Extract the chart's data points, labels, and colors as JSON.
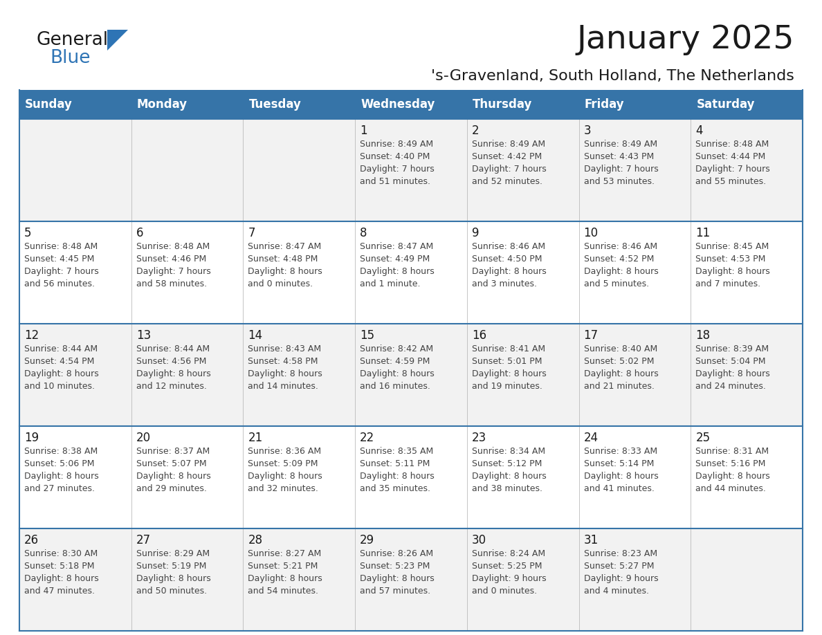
{
  "title": "January 2025",
  "subtitle": "'s-Gravenland, South Holland, The Netherlands",
  "days_of_week": [
    "Sunday",
    "Monday",
    "Tuesday",
    "Wednesday",
    "Thursday",
    "Friday",
    "Saturday"
  ],
  "header_bg": "#3674A8",
  "header_text": "#FFFFFF",
  "row_bg_odd": "#F2F2F2",
  "row_bg_even": "#FFFFFF",
  "cell_border_color": "#AAAAAA",
  "row_border_color": "#3674A8",
  "title_color": "#1A1A1A",
  "subtitle_color": "#1A1A1A",
  "text_color": "#444444",
  "day_num_color": "#1A1A1A",
  "logo_text_color": "#1A1A1A",
  "logo_blue_color": "#2E74B5",
  "triangle_color": "#2E74B5",
  "calendar_data": [
    [
      null,
      null,
      null,
      {
        "day": 1,
        "sunrise": "8:49 AM",
        "sunset": "4:40 PM",
        "daylight": "7 hours\nand 51 minutes."
      },
      {
        "day": 2,
        "sunrise": "8:49 AM",
        "sunset": "4:42 PM",
        "daylight": "7 hours\nand 52 minutes."
      },
      {
        "day": 3,
        "sunrise": "8:49 AM",
        "sunset": "4:43 PM",
        "daylight": "7 hours\nand 53 minutes."
      },
      {
        "day": 4,
        "sunrise": "8:48 AM",
        "sunset": "4:44 PM",
        "daylight": "7 hours\nand 55 minutes."
      }
    ],
    [
      {
        "day": 5,
        "sunrise": "8:48 AM",
        "sunset": "4:45 PM",
        "daylight": "7 hours\nand 56 minutes."
      },
      {
        "day": 6,
        "sunrise": "8:48 AM",
        "sunset": "4:46 PM",
        "daylight": "7 hours\nand 58 minutes."
      },
      {
        "day": 7,
        "sunrise": "8:47 AM",
        "sunset": "4:48 PM",
        "daylight": "8 hours\nand 0 minutes."
      },
      {
        "day": 8,
        "sunrise": "8:47 AM",
        "sunset": "4:49 PM",
        "daylight": "8 hours\nand 1 minute."
      },
      {
        "day": 9,
        "sunrise": "8:46 AM",
        "sunset": "4:50 PM",
        "daylight": "8 hours\nand 3 minutes."
      },
      {
        "day": 10,
        "sunrise": "8:46 AM",
        "sunset": "4:52 PM",
        "daylight": "8 hours\nand 5 minutes."
      },
      {
        "day": 11,
        "sunrise": "8:45 AM",
        "sunset": "4:53 PM",
        "daylight": "8 hours\nand 7 minutes."
      }
    ],
    [
      {
        "day": 12,
        "sunrise": "8:44 AM",
        "sunset": "4:54 PM",
        "daylight": "8 hours\nand 10 minutes."
      },
      {
        "day": 13,
        "sunrise": "8:44 AM",
        "sunset": "4:56 PM",
        "daylight": "8 hours\nand 12 minutes."
      },
      {
        "day": 14,
        "sunrise": "8:43 AM",
        "sunset": "4:58 PM",
        "daylight": "8 hours\nand 14 minutes."
      },
      {
        "day": 15,
        "sunrise": "8:42 AM",
        "sunset": "4:59 PM",
        "daylight": "8 hours\nand 16 minutes."
      },
      {
        "day": 16,
        "sunrise": "8:41 AM",
        "sunset": "5:01 PM",
        "daylight": "8 hours\nand 19 minutes."
      },
      {
        "day": 17,
        "sunrise": "8:40 AM",
        "sunset": "5:02 PM",
        "daylight": "8 hours\nand 21 minutes."
      },
      {
        "day": 18,
        "sunrise": "8:39 AM",
        "sunset": "5:04 PM",
        "daylight": "8 hours\nand 24 minutes."
      }
    ],
    [
      {
        "day": 19,
        "sunrise": "8:38 AM",
        "sunset": "5:06 PM",
        "daylight": "8 hours\nand 27 minutes."
      },
      {
        "day": 20,
        "sunrise": "8:37 AM",
        "sunset": "5:07 PM",
        "daylight": "8 hours\nand 29 minutes."
      },
      {
        "day": 21,
        "sunrise": "8:36 AM",
        "sunset": "5:09 PM",
        "daylight": "8 hours\nand 32 minutes."
      },
      {
        "day": 22,
        "sunrise": "8:35 AM",
        "sunset": "5:11 PM",
        "daylight": "8 hours\nand 35 minutes."
      },
      {
        "day": 23,
        "sunrise": "8:34 AM",
        "sunset": "5:12 PM",
        "daylight": "8 hours\nand 38 minutes."
      },
      {
        "day": 24,
        "sunrise": "8:33 AM",
        "sunset": "5:14 PM",
        "daylight": "8 hours\nand 41 minutes."
      },
      {
        "day": 25,
        "sunrise": "8:31 AM",
        "sunset": "5:16 PM",
        "daylight": "8 hours\nand 44 minutes."
      }
    ],
    [
      {
        "day": 26,
        "sunrise": "8:30 AM",
        "sunset": "5:18 PM",
        "daylight": "8 hours\nand 47 minutes."
      },
      {
        "day": 27,
        "sunrise": "8:29 AM",
        "sunset": "5:19 PM",
        "daylight": "8 hours\nand 50 minutes."
      },
      {
        "day": 28,
        "sunrise": "8:27 AM",
        "sunset": "5:21 PM",
        "daylight": "8 hours\nand 54 minutes."
      },
      {
        "day": 29,
        "sunrise": "8:26 AM",
        "sunset": "5:23 PM",
        "daylight": "8 hours\nand 57 minutes."
      },
      {
        "day": 30,
        "sunrise": "8:24 AM",
        "sunset": "5:25 PM",
        "daylight": "9 hours\nand 0 minutes."
      },
      {
        "day": 31,
        "sunrise": "8:23 AM",
        "sunset": "5:27 PM",
        "daylight": "9 hours\nand 4 minutes."
      },
      null
    ]
  ]
}
